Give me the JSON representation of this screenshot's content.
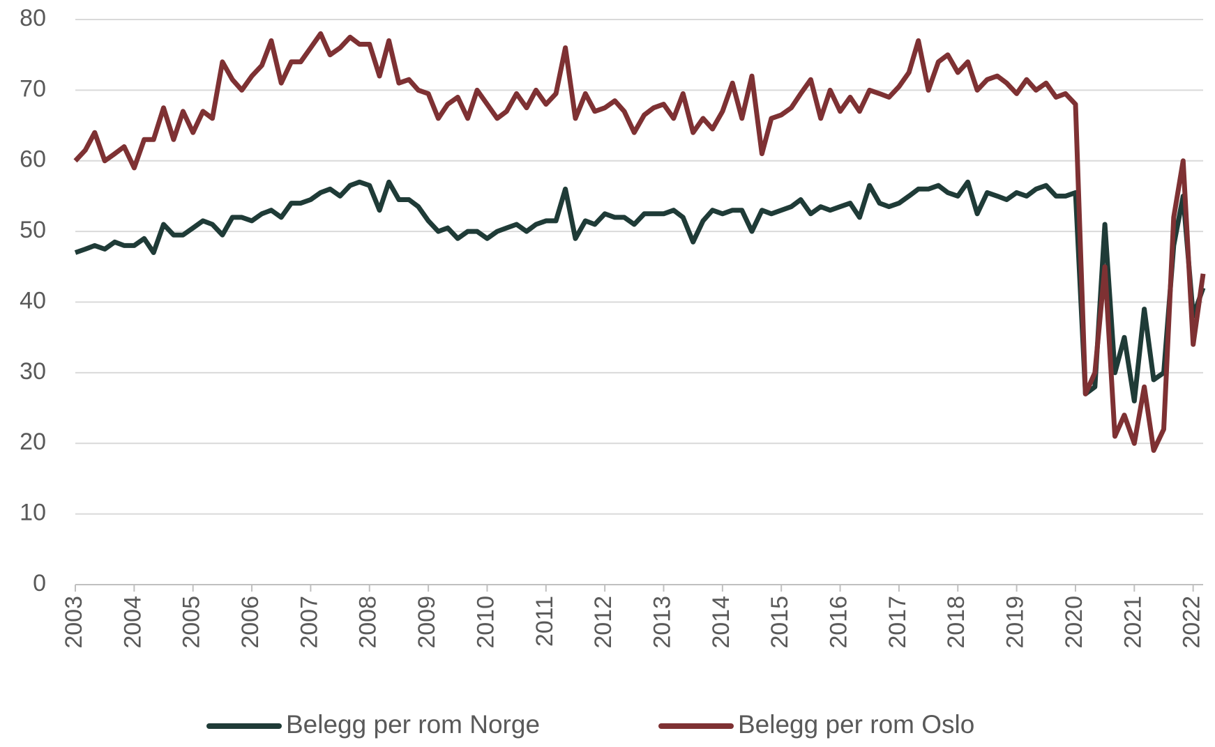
{
  "chart_data": {
    "type": "line",
    "x": [
      2003,
      2003.17,
      2003.33,
      2003.5,
      2003.67,
      2003.83,
      2004,
      2004.17,
      2004.33,
      2004.5,
      2004.67,
      2004.83,
      2005,
      2005.17,
      2005.33,
      2005.5,
      2005.67,
      2005.83,
      2006,
      2006.17,
      2006.33,
      2006.5,
      2006.67,
      2006.83,
      2007,
      2007.17,
      2007.33,
      2007.5,
      2007.67,
      2007.83,
      2008,
      2008.17,
      2008.33,
      2008.5,
      2008.67,
      2008.83,
      2009,
      2009.17,
      2009.33,
      2009.5,
      2009.67,
      2009.83,
      2010,
      2010.17,
      2010.33,
      2010.5,
      2010.67,
      2010.83,
      2011,
      2011.17,
      2011.33,
      2011.5,
      2011.67,
      2011.83,
      2012,
      2012.17,
      2012.33,
      2012.5,
      2012.67,
      2012.83,
      2013,
      2013.17,
      2013.33,
      2013.5,
      2013.67,
      2013.83,
      2014,
      2014.17,
      2014.33,
      2014.5,
      2014.67,
      2014.83,
      2015,
      2015.17,
      2015.33,
      2015.5,
      2015.67,
      2015.83,
      2016,
      2016.17,
      2016.33,
      2016.5,
      2016.67,
      2016.83,
      2017,
      2017.17,
      2017.33,
      2017.5,
      2017.67,
      2017.83,
      2018,
      2018.17,
      2018.33,
      2018.5,
      2018.67,
      2018.83,
      2019,
      2019.17,
      2019.33,
      2019.5,
      2019.67,
      2019.83,
      2020,
      2020.17,
      2020.33,
      2020.5,
      2020.67,
      2020.83,
      2021,
      2021.17,
      2021.33,
      2021.5,
      2021.67,
      2021.83,
      2022,
      2022.17
    ],
    "series": [
      {
        "name": "Belegg per rom Norge",
        "color": "#1f3b37",
        "values": [
          47,
          47.5,
          48,
          47.5,
          48.5,
          48,
          48,
          49,
          47,
          51,
          49.5,
          49.5,
          50.5,
          51.5,
          51,
          49.5,
          52,
          52,
          51.5,
          52.5,
          53,
          52,
          54,
          54,
          54.5,
          55.5,
          56,
          55,
          56.5,
          57,
          56.5,
          53,
          57,
          54.5,
          54.5,
          53.5,
          51.5,
          50,
          50.5,
          49,
          50,
          50,
          49,
          50,
          50.5,
          51,
          50,
          51,
          51.5,
          51.5,
          56,
          49,
          51.5,
          51,
          52.5,
          52,
          52,
          51,
          52.5,
          52.5,
          52.5,
          53,
          52,
          48.5,
          51.5,
          53,
          52.5,
          53,
          53,
          50,
          53,
          52.5,
          53,
          53.5,
          54.5,
          52.5,
          53.5,
          53,
          53.5,
          54,
          52,
          56.5,
          54,
          53.5,
          54,
          55,
          56,
          56,
          56.5,
          55.5,
          55,
          57,
          52.5,
          55.5,
          55,
          54.5,
          55.5,
          55,
          56,
          56.5,
          55,
          55,
          55.5,
          27,
          28,
          51,
          30,
          35,
          26,
          39,
          29,
          30,
          48,
          55,
          38,
          42
        ]
      },
      {
        "name": "Belegg per rom Oslo",
        "color": "#7e3133",
        "values": [
          60,
          61.5,
          64,
          60,
          61,
          62,
          59,
          63,
          63,
          67.5,
          63,
          67,
          64,
          67,
          66,
          74,
          71.5,
          70,
          72,
          73.5,
          77,
          71,
          74,
          74,
          76,
          78,
          75,
          76,
          77.5,
          76.5,
          76.5,
          72,
          77,
          71,
          71.5,
          70,
          69.5,
          66,
          68,
          69,
          66,
          70,
          68,
          66,
          67,
          69.5,
          67.5,
          70,
          68,
          69.5,
          76,
          66,
          69.5,
          67,
          67.5,
          68.5,
          67,
          64,
          66.5,
          67.5,
          68,
          66,
          69.5,
          64,
          66,
          64.5,
          67,
          71,
          66,
          72,
          61,
          66,
          66.5,
          67.5,
          69.5,
          71.5,
          66,
          70,
          67,
          69,
          67,
          70,
          69.5,
          69,
          70.5,
          72.5,
          77,
          70,
          74,
          75,
          72.5,
          74,
          70,
          71.5,
          72,
          71,
          69.5,
          71.5,
          70,
          71,
          69,
          69.5,
          68,
          27,
          30,
          45,
          21,
          24,
          20,
          28,
          19,
          22,
          52,
          60,
          34,
          44
        ]
      }
    ],
    "xlim": [
      2003,
      2022.17
    ],
    "xticks": [
      2003,
      2004,
      2005,
      2006,
      2007,
      2008,
      2009,
      2010,
      2011,
      2012,
      2013,
      2014,
      2015,
      2016,
      2017,
      2018,
      2019,
      2020,
      2021,
      2022
    ],
    "ylim": [
      0,
      80
    ],
    "yticks": [
      0,
      10,
      20,
      30,
      40,
      50,
      60,
      70,
      80
    ],
    "grid": true
  }
}
